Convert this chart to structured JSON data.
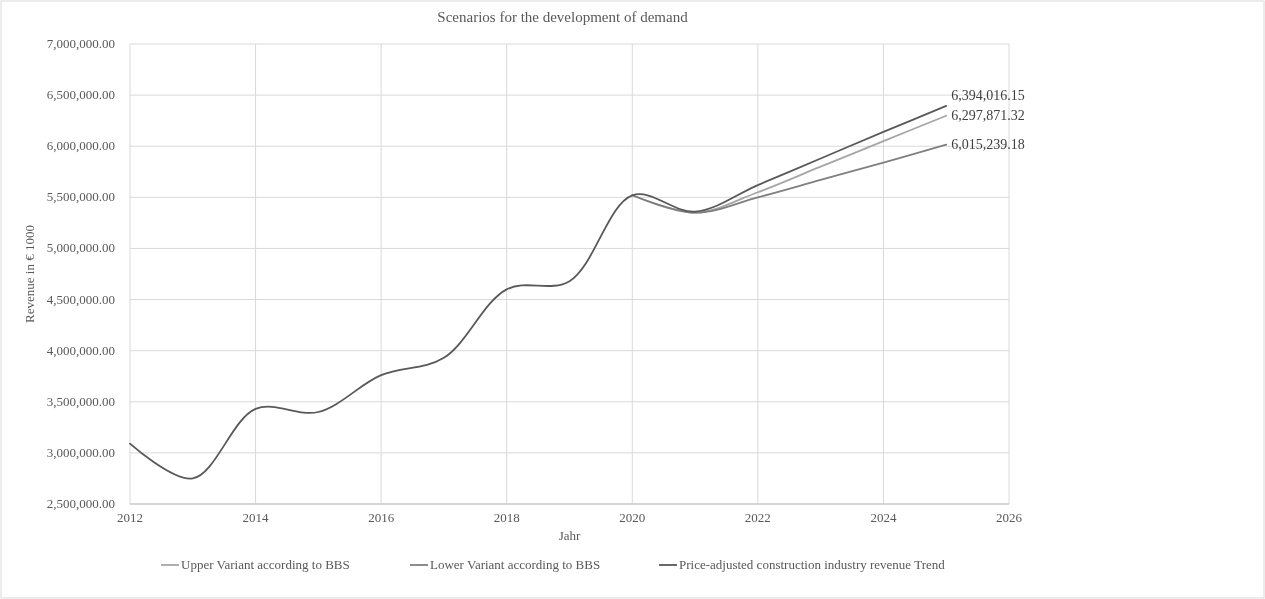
{
  "chart_data": {
    "type": "line",
    "title": "Scenarios for the development of demand",
    "xlabel": "Jahr",
    "ylabel": "Revenue in € 1000",
    "x": [
      2012,
      2013,
      2014,
      2015,
      2016,
      2017,
      2018,
      2019,
      2020,
      2021,
      2022,
      2023,
      2024,
      2025
    ],
    "series": [
      {
        "name": "Upper Variant according to BBS",
        "color": "#a6a6a6",
        "values": [
          null,
          null,
          null,
          null,
          null,
          null,
          null,
          null,
          5520000,
          5350000,
          5550000,
          5800000,
          6050000,
          6297871.32
        ],
        "value_labels": [
          null,
          null,
          null,
          null,
          null,
          null,
          null,
          null,
          null,
          null,
          null,
          null,
          null,
          "6,297,871.32"
        ]
      },
      {
        "name": "Lower Variant according to BBS",
        "color": "#7f7f7f",
        "values": [
          null,
          null,
          null,
          null,
          null,
          null,
          null,
          null,
          5520000,
          5350000,
          5500000,
          5670000,
          5840000,
          6015239.18
        ],
        "value_labels": [
          null,
          null,
          null,
          null,
          null,
          null,
          null,
          null,
          null,
          null,
          null,
          null,
          null,
          "6,015,239.18"
        ]
      },
      {
        "name": "Price-adjusted construction industry revenue Trend",
        "color": "#595959",
        "values": [
          3090000,
          2750000,
          3430000,
          3400000,
          3760000,
          3930000,
          4600000,
          4680000,
          5520000,
          5360000,
          5620000,
          5880000,
          6140000,
          6394016.15
        ],
        "value_labels": [
          null,
          null,
          null,
          null,
          null,
          null,
          null,
          null,
          null,
          null,
          null,
          null,
          null,
          "6,394,016.15"
        ]
      }
    ],
    "xlim": [
      2012,
      2026
    ],
    "xticks": [
      2012,
      2014,
      2016,
      2018,
      2020,
      2022,
      2024,
      2026
    ],
    "ylim": [
      2500000,
      7000000
    ],
    "yticks": [
      {
        "value": 2500000,
        "label": "2,500,000.00"
      },
      {
        "value": 3000000,
        "label": "3,000,000.00"
      },
      {
        "value": 3500000,
        "label": "3,500,000.00"
      },
      {
        "value": 4000000,
        "label": "4,000,000.00"
      },
      {
        "value": 4500000,
        "label": "4,500,000.00"
      },
      {
        "value": 5000000,
        "label": "5,000,000.00"
      },
      {
        "value": 5500000,
        "label": "5,500,000.00"
      },
      {
        "value": 6000000,
        "label": "6,000,000.00"
      },
      {
        "value": 6500000,
        "label": "6,500,000.00"
      },
      {
        "value": 7000000,
        "label": "7,000,000.00"
      }
    ],
    "grid": true,
    "legend": "bottom",
    "marker": "none",
    "line_style": "solid"
  }
}
